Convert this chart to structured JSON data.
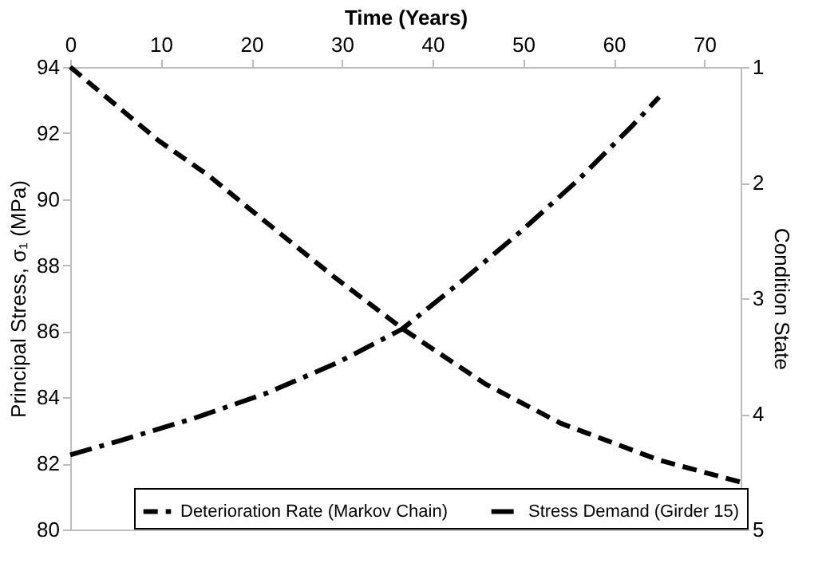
{
  "chart_data": {
    "type": "line",
    "xlabel": "Time (Years)",
    "ylabel": "Principal Stress, σ₁ (MPa)",
    "y2label": "Condition State",
    "xlim": [
      0,
      74
    ],
    "xticks": [
      0,
      10,
      20,
      30,
      40,
      50,
      60,
      70
    ],
    "ylim": [
      80,
      94
    ],
    "yticks": [
      80,
      82,
      84,
      86,
      88,
      90,
      92,
      94
    ],
    "y2lim": [
      5,
      1
    ],
    "y2ticks": [
      1,
      2,
      3,
      4,
      5
    ],
    "grid": false,
    "legend": "bottom",
    "marker": "none",
    "series": [
      {
        "name": "Deterioration Rate (Markov Chain)",
        "color": "#000000",
        "axis": "y2",
        "line_style": "dashed",
        "x": [
          0,
          9.8,
          15.3,
          20,
          29.2,
          36.8,
          45.8,
          54.1,
          65,
          74
        ],
        "values": [
          1.0,
          1.64,
          1.94,
          2.24,
          2.82,
          3.27,
          3.74,
          4.08,
          4.4,
          4.59
        ]
      },
      {
        "name": "Stress Demand (Girder 15)",
        "color": "#000000",
        "line_style": "dashdot",
        "x": [
          0,
          6,
          13.8,
          21.7,
          29.5,
          36.6,
          43.4,
          49.9,
          56.1,
          62,
          65
        ],
        "values": [
          82.26,
          82.73,
          83.38,
          84.13,
          85.05,
          86.06,
          87.56,
          89.06,
          90.59,
          92.21,
          93.09
        ]
      }
    ]
  }
}
